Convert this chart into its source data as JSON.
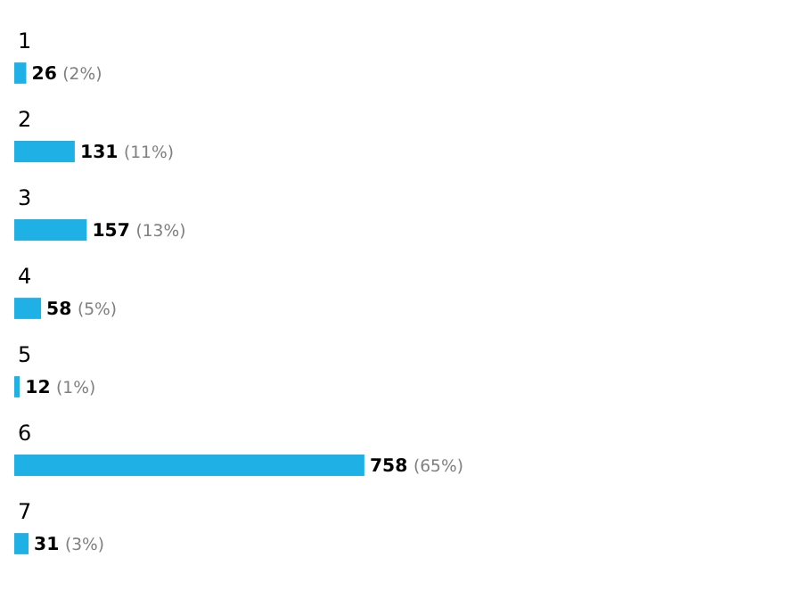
{
  "chart_data": {
    "type": "bar",
    "orientation": "horizontal",
    "categories": [
      "1",
      "2",
      "3",
      "4",
      "5",
      "6",
      "7"
    ],
    "values": [
      26,
      131,
      157,
      58,
      12,
      758,
      31
    ],
    "value_labels": [
      "26 (2%)",
      "131 (11%)",
      "157 (13%)",
      "58 (5%)",
      "12 (1%)",
      "758 (65%)",
      "31 (3%)"
    ],
    "color": "#1fb0e6"
  }
}
